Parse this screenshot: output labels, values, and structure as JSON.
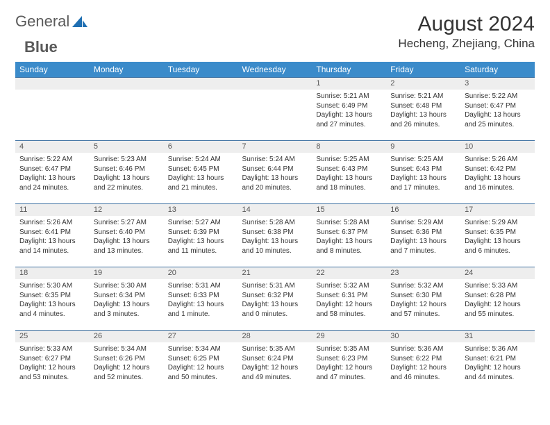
{
  "logo": {
    "text1": "General",
    "text2": "Blue"
  },
  "title": "August 2024",
  "location": "Hecheng, Zhejiang, China",
  "colors": {
    "header_bg": "#3b8bca",
    "header_text": "#ffffff",
    "day_border": "#3b6fa0",
    "daynum_bg": "#eeeeee",
    "daynum_text": "#555555",
    "body_text": "#333333",
    "logo_text": "#5a5a5a",
    "logo_accent": "#1f6fb2",
    "page_bg": "#ffffff"
  },
  "typography": {
    "title_fontsize": 30,
    "location_fontsize": 17,
    "weekday_fontsize": 12,
    "daynum_fontsize": 11,
    "body_fontsize": 10,
    "logo_fontsize": 22
  },
  "weekdays": [
    "Sunday",
    "Monday",
    "Tuesday",
    "Wednesday",
    "Thursday",
    "Friday",
    "Saturday"
  ],
  "weeks": [
    [
      null,
      null,
      null,
      null,
      {
        "day": "1",
        "sunrise": "Sunrise: 5:21 AM",
        "sunset": "Sunset: 6:49 PM",
        "daylight1": "Daylight: 13 hours",
        "daylight2": "and 27 minutes."
      },
      {
        "day": "2",
        "sunrise": "Sunrise: 5:21 AM",
        "sunset": "Sunset: 6:48 PM",
        "daylight1": "Daylight: 13 hours",
        "daylight2": "and 26 minutes."
      },
      {
        "day": "3",
        "sunrise": "Sunrise: 5:22 AM",
        "sunset": "Sunset: 6:47 PM",
        "daylight1": "Daylight: 13 hours",
        "daylight2": "and 25 minutes."
      }
    ],
    [
      {
        "day": "4",
        "sunrise": "Sunrise: 5:22 AM",
        "sunset": "Sunset: 6:47 PM",
        "daylight1": "Daylight: 13 hours",
        "daylight2": "and 24 minutes."
      },
      {
        "day": "5",
        "sunrise": "Sunrise: 5:23 AM",
        "sunset": "Sunset: 6:46 PM",
        "daylight1": "Daylight: 13 hours",
        "daylight2": "and 22 minutes."
      },
      {
        "day": "6",
        "sunrise": "Sunrise: 5:24 AM",
        "sunset": "Sunset: 6:45 PM",
        "daylight1": "Daylight: 13 hours",
        "daylight2": "and 21 minutes."
      },
      {
        "day": "7",
        "sunrise": "Sunrise: 5:24 AM",
        "sunset": "Sunset: 6:44 PM",
        "daylight1": "Daylight: 13 hours",
        "daylight2": "and 20 minutes."
      },
      {
        "day": "8",
        "sunrise": "Sunrise: 5:25 AM",
        "sunset": "Sunset: 6:43 PM",
        "daylight1": "Daylight: 13 hours",
        "daylight2": "and 18 minutes."
      },
      {
        "day": "9",
        "sunrise": "Sunrise: 5:25 AM",
        "sunset": "Sunset: 6:43 PM",
        "daylight1": "Daylight: 13 hours",
        "daylight2": "and 17 minutes."
      },
      {
        "day": "10",
        "sunrise": "Sunrise: 5:26 AM",
        "sunset": "Sunset: 6:42 PM",
        "daylight1": "Daylight: 13 hours",
        "daylight2": "and 16 minutes."
      }
    ],
    [
      {
        "day": "11",
        "sunrise": "Sunrise: 5:26 AM",
        "sunset": "Sunset: 6:41 PM",
        "daylight1": "Daylight: 13 hours",
        "daylight2": "and 14 minutes."
      },
      {
        "day": "12",
        "sunrise": "Sunrise: 5:27 AM",
        "sunset": "Sunset: 6:40 PM",
        "daylight1": "Daylight: 13 hours",
        "daylight2": "and 13 minutes."
      },
      {
        "day": "13",
        "sunrise": "Sunrise: 5:27 AM",
        "sunset": "Sunset: 6:39 PM",
        "daylight1": "Daylight: 13 hours",
        "daylight2": "and 11 minutes."
      },
      {
        "day": "14",
        "sunrise": "Sunrise: 5:28 AM",
        "sunset": "Sunset: 6:38 PM",
        "daylight1": "Daylight: 13 hours",
        "daylight2": "and 10 minutes."
      },
      {
        "day": "15",
        "sunrise": "Sunrise: 5:28 AM",
        "sunset": "Sunset: 6:37 PM",
        "daylight1": "Daylight: 13 hours",
        "daylight2": "and 8 minutes."
      },
      {
        "day": "16",
        "sunrise": "Sunrise: 5:29 AM",
        "sunset": "Sunset: 6:36 PM",
        "daylight1": "Daylight: 13 hours",
        "daylight2": "and 7 minutes."
      },
      {
        "day": "17",
        "sunrise": "Sunrise: 5:29 AM",
        "sunset": "Sunset: 6:35 PM",
        "daylight1": "Daylight: 13 hours",
        "daylight2": "and 6 minutes."
      }
    ],
    [
      {
        "day": "18",
        "sunrise": "Sunrise: 5:30 AM",
        "sunset": "Sunset: 6:35 PM",
        "daylight1": "Daylight: 13 hours",
        "daylight2": "and 4 minutes."
      },
      {
        "day": "19",
        "sunrise": "Sunrise: 5:30 AM",
        "sunset": "Sunset: 6:34 PM",
        "daylight1": "Daylight: 13 hours",
        "daylight2": "and 3 minutes."
      },
      {
        "day": "20",
        "sunrise": "Sunrise: 5:31 AM",
        "sunset": "Sunset: 6:33 PM",
        "daylight1": "Daylight: 13 hours",
        "daylight2": "and 1 minute."
      },
      {
        "day": "21",
        "sunrise": "Sunrise: 5:31 AM",
        "sunset": "Sunset: 6:32 PM",
        "daylight1": "Daylight: 13 hours",
        "daylight2": "and 0 minutes."
      },
      {
        "day": "22",
        "sunrise": "Sunrise: 5:32 AM",
        "sunset": "Sunset: 6:31 PM",
        "daylight1": "Daylight: 12 hours",
        "daylight2": "and 58 minutes."
      },
      {
        "day": "23",
        "sunrise": "Sunrise: 5:32 AM",
        "sunset": "Sunset: 6:30 PM",
        "daylight1": "Daylight: 12 hours",
        "daylight2": "and 57 minutes."
      },
      {
        "day": "24",
        "sunrise": "Sunrise: 5:33 AM",
        "sunset": "Sunset: 6:28 PM",
        "daylight1": "Daylight: 12 hours",
        "daylight2": "and 55 minutes."
      }
    ],
    [
      {
        "day": "25",
        "sunrise": "Sunrise: 5:33 AM",
        "sunset": "Sunset: 6:27 PM",
        "daylight1": "Daylight: 12 hours",
        "daylight2": "and 53 minutes."
      },
      {
        "day": "26",
        "sunrise": "Sunrise: 5:34 AM",
        "sunset": "Sunset: 6:26 PM",
        "daylight1": "Daylight: 12 hours",
        "daylight2": "and 52 minutes."
      },
      {
        "day": "27",
        "sunrise": "Sunrise: 5:34 AM",
        "sunset": "Sunset: 6:25 PM",
        "daylight1": "Daylight: 12 hours",
        "daylight2": "and 50 minutes."
      },
      {
        "day": "28",
        "sunrise": "Sunrise: 5:35 AM",
        "sunset": "Sunset: 6:24 PM",
        "daylight1": "Daylight: 12 hours",
        "daylight2": "and 49 minutes."
      },
      {
        "day": "29",
        "sunrise": "Sunrise: 5:35 AM",
        "sunset": "Sunset: 6:23 PM",
        "daylight1": "Daylight: 12 hours",
        "daylight2": "and 47 minutes."
      },
      {
        "day": "30",
        "sunrise": "Sunrise: 5:36 AM",
        "sunset": "Sunset: 6:22 PM",
        "daylight1": "Daylight: 12 hours",
        "daylight2": "and 46 minutes."
      },
      {
        "day": "31",
        "sunrise": "Sunrise: 5:36 AM",
        "sunset": "Sunset: 6:21 PM",
        "daylight1": "Daylight: 12 hours",
        "daylight2": "and 44 minutes."
      }
    ]
  ]
}
